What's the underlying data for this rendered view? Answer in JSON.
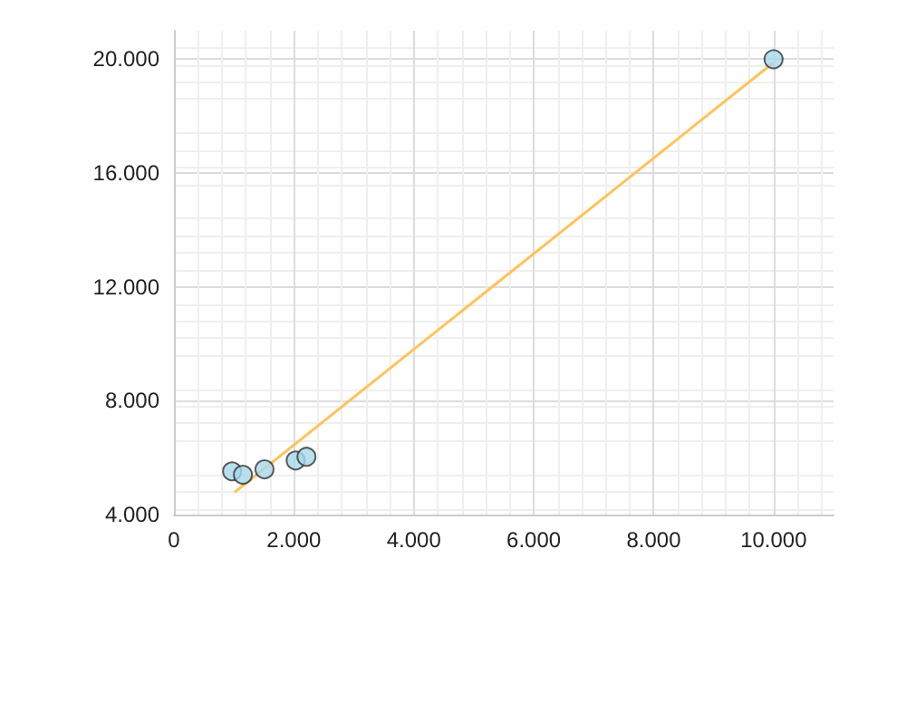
{
  "chart_data": {
    "type": "scatter",
    "grid": true,
    "xlim": [
      0,
      11000
    ],
    "xticks": [
      0,
      {
        "value": 2000,
        "label": "2.000"
      },
      {
        "value": 4000,
        "label": "4.000"
      },
      {
        "value": 6000,
        "label": "6.000"
      },
      {
        "value": 8000,
        "label": "8.000"
      },
      {
        "value": 10000,
        "label": "10.000"
      }
    ],
    "ylim": [
      4000,
      21000
    ],
    "yticks": [
      {
        "value": 4000,
        "label": "4.000"
      },
      {
        "value": 8000,
        "label": "8.000"
      },
      {
        "value": 12000,
        "label": "12.000"
      },
      {
        "value": 16000,
        "label": "16.000"
      },
      {
        "value": 20000,
        "label": "20.000"
      }
    ],
    "series": [
      {
        "color": "#a8d8ea",
        "marker": "circle",
        "x": [
          970,
          1150,
          1510,
          2030,
          2210,
          10000
        ],
        "values": [
          5520,
          5400,
          5590,
          5900,
          6030,
          20000
        ]
      },
      {
        "type": "line",
        "color": "#ffc35a",
        "marker": "none",
        "line_style": "solid",
        "x": [
          1010,
          9990
        ],
        "values": [
          4780,
          19870
        ]
      }
    ]
  }
}
